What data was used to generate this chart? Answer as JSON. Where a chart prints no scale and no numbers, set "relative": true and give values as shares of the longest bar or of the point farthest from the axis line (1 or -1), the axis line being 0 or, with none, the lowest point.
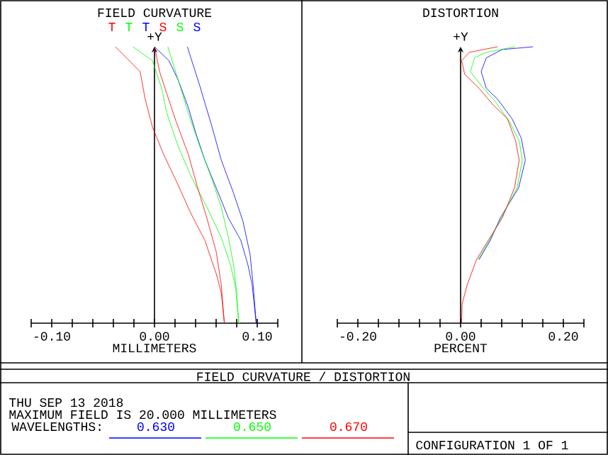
{
  "chart_data": [
    {
      "type": "line",
      "title": "FIELD CURVATURE",
      "xlabel": "MILLIMETERS",
      "ylabel": "+Y",
      "relative": true,
      "xlim": [
        -0.12,
        0.12
      ],
      "xticks": [
        {
          "value": -0.12,
          "label": null
        },
        {
          "value": -0.1,
          "label": "-0.10"
        },
        {
          "value": -0.08,
          "label": null
        },
        {
          "value": -0.06,
          "label": null
        },
        {
          "value": -0.04,
          "label": null
        },
        {
          "value": -0.02,
          "label": null
        },
        {
          "value": 0,
          "label": "0.00"
        },
        {
          "value": 0.02,
          "label": null
        },
        {
          "value": 0.04,
          "label": null
        },
        {
          "value": 0.06,
          "label": null
        },
        {
          "value": 0.08,
          "label": null
        },
        {
          "value": 0.1,
          "label": "0.10"
        },
        {
          "value": 0.12,
          "label": null
        }
      ],
      "legend": "top",
      "marker": "none",
      "line_style": "solid",
      "series": [
        {
          "name": "T",
          "color": "#ff0000",
          "x": [
            -0.038,
            -0.03,
            -0.014,
            -0.009,
            -0.002,
            0.009,
            0.023,
            0.035,
            0.049,
            0.06,
            0.065,
            0.068
          ],
          "values": [
            1,
            0.97,
            0.91,
            0.81,
            0.71,
            0.61,
            0.5,
            0.4,
            0.3,
            0.18,
            0.11,
            0
          ]
        },
        {
          "name": "T",
          "color": "#00ff00",
          "x": [
            -0.021,
            -0.002,
            0.007,
            0.012,
            0.023,
            0.037,
            0.051,
            0.065,
            0.074,
            0.079,
            0.082
          ],
          "values": [
            1,
            0.95,
            0.85,
            0.76,
            0.64,
            0.52,
            0.42,
            0.31,
            0.21,
            0.13,
            0
          ]
        },
        {
          "name": "T",
          "color": "#0000ff",
          "x": [
            0,
            0.014,
            0.023,
            0.033,
            0.04,
            0.049,
            0.06,
            0.072,
            0.084,
            0.091,
            0.095,
            0.099
          ],
          "values": [
            1,
            0.95,
            0.88,
            0.78,
            0.69,
            0.59,
            0.49,
            0.38,
            0.3,
            0.21,
            0.14,
            0
          ]
        },
        {
          "name": "S",
          "color": "#ff0000",
          "x": [
            0,
            0.005,
            0.012,
            0.021,
            0.033,
            0.042,
            0.051,
            0.06,
            0.065,
            0.068
          ],
          "values": [
            1,
            0.91,
            0.83,
            0.73,
            0.61,
            0.49,
            0.38,
            0.26,
            0.14,
            0
          ]
        },
        {
          "name": "S",
          "color": "#00ff00",
          "x": [
            0.013,
            0.023,
            0.033,
            0.044,
            0.056,
            0.065,
            0.072,
            0.077,
            0.08,
            0.082
          ],
          "values": [
            1,
            0.88,
            0.76,
            0.64,
            0.52,
            0.42,
            0.31,
            0.21,
            0.11,
            0
          ]
        },
        {
          "name": "S",
          "color": "#0000ff",
          "x": [
            0.032,
            0.044,
            0.056,
            0.065,
            0.077,
            0.086,
            0.093,
            0.096,
            0.099
          ],
          "values": [
            1,
            0.86,
            0.71,
            0.59,
            0.47,
            0.37,
            0.25,
            0.14,
            0
          ]
        }
      ]
    },
    {
      "type": "line",
      "title": "DISTORTION",
      "xlabel": "PERCENT",
      "ylabel": "+Y",
      "relative": true,
      "xlim": [
        -0.24,
        0.24
      ],
      "xticks": [
        {
          "value": -0.24,
          "label": null
        },
        {
          "value": -0.2,
          "label": "-0.20"
        },
        {
          "value": -0.16,
          "label": null
        },
        {
          "value": -0.12,
          "label": null
        },
        {
          "value": -0.08,
          "label": null
        },
        {
          "value": -0.04,
          "label": null
        },
        {
          "value": 0,
          "label": "0.00"
        },
        {
          "value": 0.04,
          "label": null
        },
        {
          "value": 0.08,
          "label": null
        },
        {
          "value": 0.12,
          "label": null
        },
        {
          "value": 0.16,
          "label": null
        },
        {
          "value": 0.2,
          "label": "0.20"
        },
        {
          "value": 0.24,
          "label": null
        }
      ],
      "legend": "bottom",
      "legend_title": "WAVELENGTHS:",
      "marker": "none",
      "line_style": "solid",
      "series": [
        {
          "name": "0.630",
          "color": "#0000ff",
          "x": [
            0.036,
            0.058,
            0.077,
            0.113,
            0.126,
            0.118,
            0.1,
            0.072,
            0.05,
            0.04,
            0.05,
            0.081,
            0.141
          ],
          "values": [
            0.23,
            0.3,
            0.38,
            0.49,
            0.59,
            0.67,
            0.74,
            0.81,
            0.85,
            0.91,
            0.96,
            0.99,
            1
          ]
        },
        {
          "name": "0.650",
          "color": "#00ff00",
          "x": [
            0.034,
            0.056,
            0.079,
            0.11,
            0.12,
            0.114,
            0.095,
            0.068,
            0.04,
            0.019,
            0.027,
            0.05,
            0.106
          ],
          "values": [
            0.23,
            0.3,
            0.38,
            0.49,
            0.59,
            0.66,
            0.73,
            0.8,
            0.86,
            0.91,
            0.96,
            0.98,
            1
          ]
        },
        {
          "name": "0.670",
          "color": "#ff0000",
          "x": [
            0.002,
            0.003,
            0.013,
            0.031,
            0.054,
            0.081,
            0.105,
            0.114,
            0.107,
            0.091,
            0.063,
            0.036,
            0.008,
            0.002,
            0.017,
            0.072
          ],
          "values": [
            0,
            0.07,
            0.14,
            0.23,
            0.3,
            0.38,
            0.49,
            0.59,
            0.66,
            0.74,
            0.79,
            0.85,
            0.9,
            0.95,
            0.98,
            1
          ]
        }
      ]
    },
    {
      "type": "other",
      "title": "FIELD CURVATURE / DISTORTION",
      "annotations": [
        "THU SEP 13 2018",
        "MAXIMUM FIELD IS 20.000 MILLIMETERS",
        "CONFIGURATION 1 OF 1"
      ]
    }
  ]
}
